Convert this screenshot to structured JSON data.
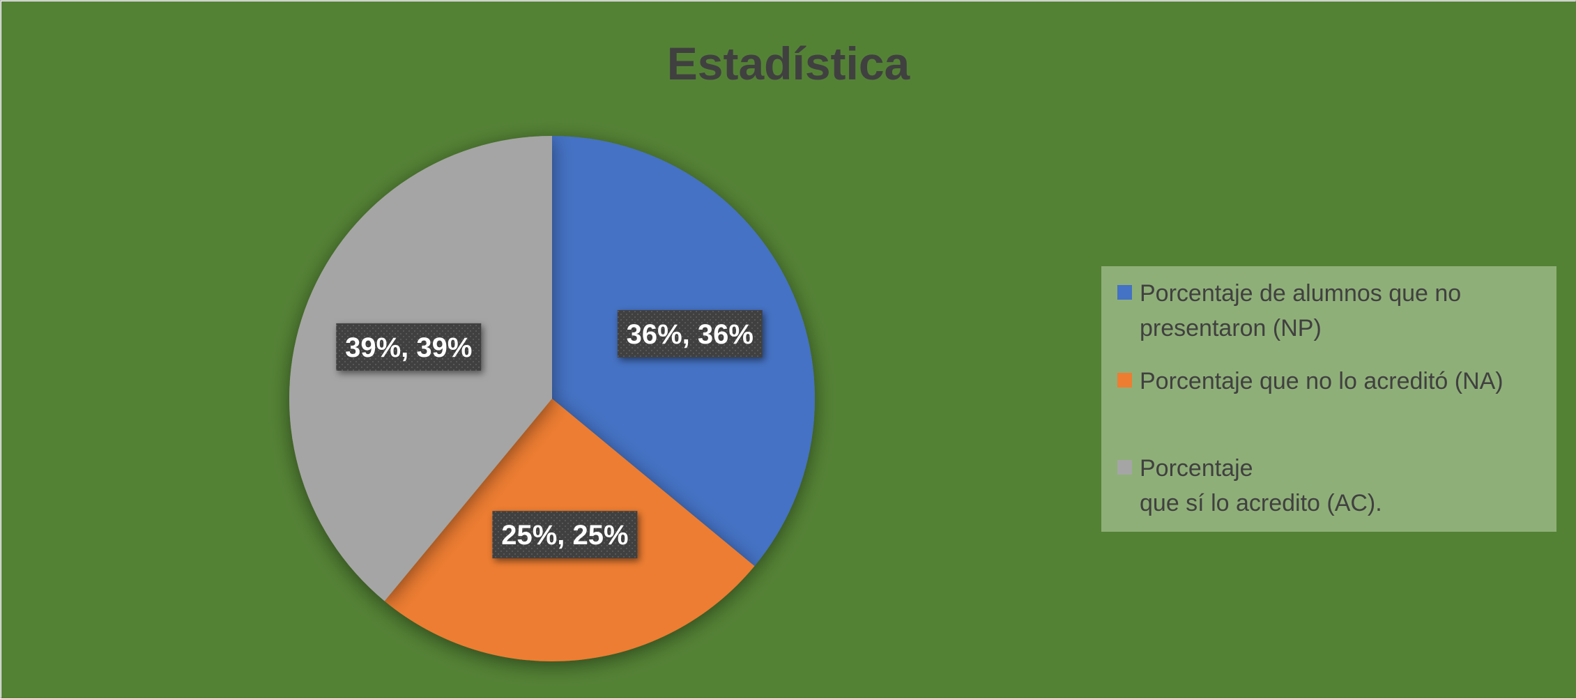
{
  "colors": {
    "plot_background": "#548235",
    "legend_background": "#8faf78",
    "label_box": "#404040"
  },
  "chart_data": {
    "type": "pie",
    "title": "Estadística",
    "start_angle_deg": 0,
    "direction": "clockwise",
    "legend_position": "right",
    "slices": [
      {
        "legend_lines": [
          "Porcentaje de alumnos que no",
          "presentaron (NP)"
        ],
        "value": 36,
        "data_label": "36%, 36%",
        "color": "#4472c4"
      },
      {
        "legend_lines": [
          "Porcentaje que no lo acreditó (NA)"
        ],
        "value": 25,
        "data_label": "25%, 25%",
        "color": "#ed7d31"
      },
      {
        "legend_lines": [
          "Porcentaje",
          "que sí lo acredito (AC)."
        ],
        "value": 39,
        "data_label": "39%, 39%",
        "color": "#a5a5a5"
      }
    ]
  }
}
